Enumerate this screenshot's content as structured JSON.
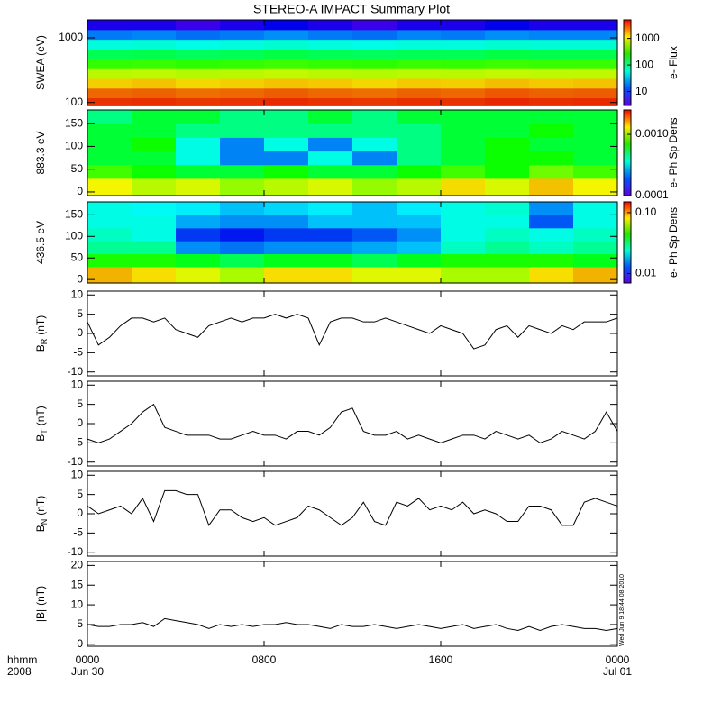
{
  "title": "STEREO-A IMPACT Summary Plot",
  "timestamp": "Wed Jun  9 18:44:08 2010",
  "x_axis_caption": [
    "hhmm",
    "2008"
  ],
  "chart_data": [
    {
      "type": "heatmap",
      "ylabel": "SWEA (eV)",
      "colorbar_label": "e- Flux",
      "ylog": true,
      "clog": true,
      "xlim": [
        0,
        24
      ],
      "ylim": [
        90,
        1900
      ],
      "yticks": [
        100,
        1000
      ],
      "clim": [
        3,
        5000
      ],
      "cticks": [
        10,
        100,
        1000
      ],
      "x": [
        1,
        3,
        5,
        7,
        9,
        11,
        13,
        15,
        17,
        19,
        21,
        23
      ],
      "y": [
        100,
        140,
        200,
        280,
        400,
        560,
        800,
        1130,
        1600
      ],
      "z": [
        [
          3500,
          3600,
          3400,
          3500,
          3700,
          3500,
          3400,
          3600,
          3500,
          3800,
          3600,
          3700
        ],
        [
          2400,
          2500,
          2300,
          2400,
          2600,
          2400,
          2300,
          2500,
          2400,
          2700,
          2500,
          2600
        ],
        [
          1200,
          1300,
          1150,
          1200,
          1300,
          1250,
          1150,
          1250,
          1200,
          1350,
          1250,
          1300
        ],
        [
          600,
          620,
          580,
          600,
          640,
          600,
          570,
          610,
          600,
          650,
          620,
          630
        ],
        [
          240,
          250,
          230,
          240,
          260,
          240,
          230,
          250,
          240,
          260,
          250,
          250
        ],
        [
          100,
          105,
          95,
          100,
          110,
          100,
          95,
          100,
          100,
          110,
          105,
          105
        ],
        [
          40,
          42,
          38,
          40,
          44,
          40,
          38,
          41,
          40,
          44,
          42,
          42
        ],
        [
          14,
          15,
          13,
          14,
          16,
          14,
          13,
          15,
          14,
          16,
          15,
          15
        ],
        [
          5,
          5,
          4,
          5,
          6,
          5,
          4,
          5,
          5,
          6,
          5,
          5
        ]
      ]
    },
    {
      "type": "heatmap",
      "ylabel": "883.3 eV",
      "colorbar_label": "e- Ph Sp Dens",
      "ylog": false,
      "clog": true,
      "xlim": [
        0,
        24
      ],
      "ylim": [
        -8,
        180
      ],
      "yticks": [
        0,
        50,
        100,
        150
      ],
      "clim": [
        0.0001,
        0.0025
      ],
      "cticks": [
        0.0001,
        {
          "value": 0.001,
          "label": "0.0010"
        }
      ],
      "x": [
        1,
        3,
        5,
        7,
        9,
        11,
        13,
        15,
        17,
        19,
        21,
        23
      ],
      "y": [
        15,
        45,
        75,
        105,
        135,
        165
      ],
      "z": [
        [
          0.0012,
          0.001,
          0.0011,
          0.0009,
          0.001,
          0.0011,
          0.0009,
          0.001,
          0.0013,
          0.0011,
          0.0014,
          0.0012
        ],
        [
          0.0007,
          0.0006,
          0.0005,
          0.0005,
          0.0006,
          0.0005,
          0.0005,
          0.0006,
          0.0007,
          0.0006,
          0.0008,
          0.0007
        ],
        [
          0.0005,
          0.0005,
          0.0003,
          0.0002,
          0.0002,
          0.0003,
          0.0002,
          0.0004,
          0.0005,
          0.0006,
          0.0006,
          0.0005
        ],
        [
          0.0005,
          0.0006,
          0.0003,
          0.0002,
          0.0003,
          0.0002,
          0.0003,
          0.0004,
          0.0005,
          0.0006,
          0.0005,
          0.0005
        ],
        [
          0.0005,
          0.0005,
          0.0004,
          0.0004,
          0.0004,
          0.0004,
          0.0004,
          0.0004,
          0.0005,
          0.0005,
          0.0006,
          0.0005
        ],
        [
          0.0004,
          0.0005,
          0.0005,
          0.0004,
          0.0004,
          0.0005,
          0.0004,
          0.0005,
          0.0005,
          0.0005,
          0.0005,
          0.0005
        ]
      ]
    },
    {
      "type": "heatmap",
      "ylabel": "436.5 eV",
      "colorbar_label": "e- Ph Sp Dens",
      "ylog": false,
      "clog": true,
      "xlim": [
        0,
        24
      ],
      "ylim": [
        -8,
        180
      ],
      "yticks": [
        0,
        50,
        100,
        150
      ],
      "clim": [
        0.007,
        0.15
      ],
      "cticks": [
        0.01,
        {
          "value": 0.1,
          "label": "0.10"
        }
      ],
      "x": [
        1,
        3,
        5,
        7,
        9,
        11,
        13,
        15,
        17,
        19,
        21,
        23
      ],
      "y": [
        15,
        45,
        75,
        105,
        135,
        165
      ],
      "z": [
        [
          0.09,
          0.08,
          0.07,
          0.06,
          0.08,
          0.08,
          0.07,
          0.07,
          0.06,
          0.06,
          0.08,
          0.09
        ],
        [
          0.04,
          0.04,
          0.035,
          0.03,
          0.035,
          0.035,
          0.03,
          0.035,
          0.04,
          0.04,
          0.04,
          0.035
        ],
        [
          0.025,
          0.025,
          0.014,
          0.013,
          0.014,
          0.014,
          0.015,
          0.016,
          0.022,
          0.025,
          0.022,
          0.025
        ],
        [
          0.022,
          0.02,
          0.011,
          0.01,
          0.011,
          0.011,
          0.012,
          0.014,
          0.02,
          0.022,
          0.02,
          0.022
        ],
        [
          0.02,
          0.02,
          0.015,
          0.014,
          0.014,
          0.016,
          0.016,
          0.016,
          0.02,
          0.02,
          0.012,
          0.02
        ],
        [
          0.02,
          0.019,
          0.018,
          0.016,
          0.017,
          0.018,
          0.016,
          0.018,
          0.02,
          0.021,
          0.014,
          0.02
        ]
      ]
    },
    {
      "type": "line",
      "ylabel": "B",
      "ylabel_sub": "R",
      "ylabel_unit": "(nT)",
      "color": "#000000",
      "xlim": [
        0,
        24
      ],
      "ylim": [
        -11,
        11
      ],
      "yticks": [
        -10,
        -5,
        0,
        5,
        10
      ],
      "x": [
        0,
        0.5,
        1,
        1.5,
        2,
        2.5,
        3,
        3.5,
        4,
        4.5,
        5,
        5.5,
        6,
        6.5,
        7,
        7.5,
        8,
        8.5,
        9,
        9.5,
        10,
        10.5,
        11,
        11.5,
        12,
        12.5,
        13,
        13.5,
        14,
        14.5,
        15,
        15.5,
        16,
        16.5,
        17,
        17.5,
        18,
        18.5,
        19,
        19.5,
        20,
        20.5,
        21,
        21.5,
        22,
        22.5,
        23,
        23.5,
        24
      ],
      "values": [
        3,
        -3,
        -1,
        2,
        4,
        4,
        3,
        4,
        1,
        0,
        -1,
        2,
        3,
        4,
        3,
        4,
        4,
        5,
        4,
        5,
        4,
        -3,
        3,
        4,
        4,
        3,
        3,
        4,
        3,
        2,
        1,
        0,
        2,
        1,
        0,
        -4,
        -3,
        1,
        2,
        -1,
        2,
        1,
        0,
        2,
        1,
        3,
        3,
        3,
        4
      ]
    },
    {
      "type": "line",
      "ylabel": "B",
      "ylabel_sub": "T",
      "ylabel_unit": "(nT)",
      "color": "#000000",
      "xlim": [
        0,
        24
      ],
      "ylim": [
        -11,
        11
      ],
      "yticks": [
        -10,
        -5,
        0,
        5,
        10
      ],
      "x": [
        0,
        0.5,
        1,
        1.5,
        2,
        2.5,
        3,
        3.5,
        4,
        4.5,
        5,
        5.5,
        6,
        6.5,
        7,
        7.5,
        8,
        8.5,
        9,
        9.5,
        10,
        10.5,
        11,
        11.5,
        12,
        12.5,
        13,
        13.5,
        14,
        14.5,
        15,
        15.5,
        16,
        16.5,
        17,
        17.5,
        18,
        18.5,
        19,
        19.5,
        20,
        20.5,
        21,
        21.5,
        22,
        22.5,
        23,
        23.5,
        24
      ],
      "values": [
        -4,
        -5,
        -4,
        -2,
        0,
        3,
        5,
        -1,
        -2,
        -3,
        -3,
        -3,
        -4,
        -4,
        -3,
        -2,
        -3,
        -3,
        -4,
        -2,
        -2,
        -3,
        -1,
        3,
        4,
        -2,
        -3,
        -3,
        -2,
        -4,
        -3,
        -4,
        -5,
        -4,
        -3,
        -3,
        -4,
        -2,
        -3,
        -4,
        -3,
        -5,
        -4,
        -2,
        -3,
        -4,
        -2,
        3,
        -2
      ]
    },
    {
      "type": "line",
      "ylabel": "B",
      "ylabel_sub": "N",
      "ylabel_unit": "(nT)",
      "color": "#000000",
      "xlim": [
        0,
        24
      ],
      "ylim": [
        -11,
        11
      ],
      "yticks": [
        -10,
        -5,
        0,
        5,
        10
      ],
      "x": [
        0,
        0.5,
        1,
        1.5,
        2,
        2.5,
        3,
        3.5,
        4,
        4.5,
        5,
        5.5,
        6,
        6.5,
        7,
        7.5,
        8,
        8.5,
        9,
        9.5,
        10,
        10.5,
        11,
        11.5,
        12,
        12.5,
        13,
        13.5,
        14,
        14.5,
        15,
        15.5,
        16,
        16.5,
        17,
        17.5,
        18,
        18.5,
        19,
        19.5,
        20,
        20.5,
        21,
        21.5,
        22,
        22.5,
        23,
        23.5,
        24
      ],
      "values": [
        2,
        0,
        1,
        2,
        0,
        4,
        -2,
        6,
        6,
        5,
        5,
        -3,
        1,
        1,
        -1,
        -2,
        -1,
        -3,
        -2,
        -1,
        2,
        1,
        -1,
        -3,
        -1,
        3,
        -2,
        -3,
        3,
        2,
        4,
        1,
        2,
        1,
        3,
        0,
        1,
        0,
        -2,
        -2,
        2,
        2,
        1,
        -3,
        -3,
        3,
        4,
        3,
        2
      ]
    },
    {
      "type": "line",
      "ylabel": "|B|",
      "ylabel_unit": "(nT)",
      "color": "#000000",
      "xlim": [
        0,
        24
      ],
      "ylim": [
        -0.5,
        21
      ],
      "yticks": [
        0,
        5,
        10,
        15,
        20
      ],
      "xticks": [
        {
          "value": 0,
          "label": "0000"
        },
        {
          "value": 8,
          "label": "0800"
        },
        {
          "value": 16,
          "label": "1600"
        },
        {
          "value": 24,
          "label": "0000"
        }
      ],
      "xtick_dates": [
        {
          "value": 0,
          "label": "Jun 30"
        },
        {
          "value": 24,
          "label": "Jul 01"
        }
      ],
      "x": [
        0,
        0.5,
        1,
        1.5,
        2,
        2.5,
        3,
        3.5,
        4,
        4.5,
        5,
        5.5,
        6,
        6.5,
        7,
        7.5,
        8,
        8.5,
        9,
        9.5,
        10,
        10.5,
        11,
        11.5,
        12,
        12.5,
        13,
        13.5,
        14,
        14.5,
        15,
        15.5,
        16,
        16.5,
        17,
        17.5,
        18,
        18.5,
        19,
        19.5,
        20,
        20.5,
        21,
        21.5,
        22,
        22.5,
        23,
        23.5,
        24
      ],
      "values": [
        5,
        4.5,
        4.5,
        5,
        5,
        5.5,
        4.5,
        6.5,
        6,
        5.5,
        5,
        4,
        5,
        4.5,
        5,
        4.5,
        5,
        5,
        5.5,
        5,
        5,
        4.5,
        4,
        5,
        4.5,
        4.5,
        5,
        4.5,
        4,
        4.5,
        5,
        4.5,
        4,
        4.5,
        5,
        4,
        4.5,
        5,
        4,
        3.5,
        4.5,
        3.5,
        4.5,
        5,
        4.5,
        4,
        4,
        3.5,
        4
      ]
    }
  ]
}
